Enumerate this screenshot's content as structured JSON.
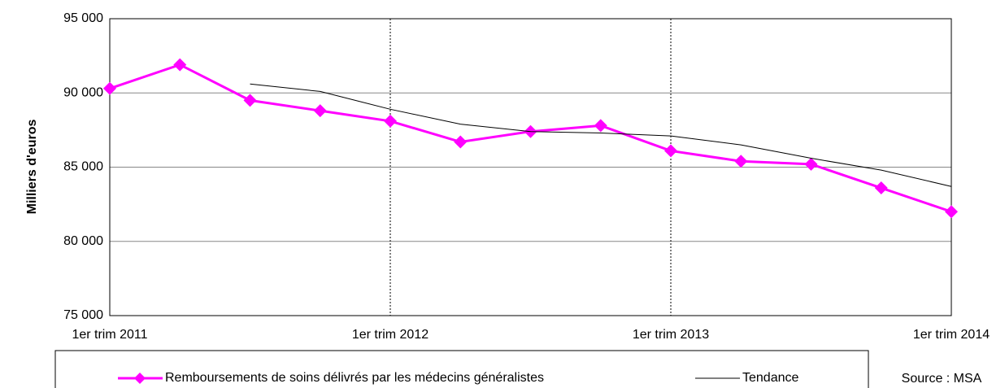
{
  "chart_data": {
    "type": "line",
    "y_label": "Milliers d'euros",
    "source": "Source : MSA",
    "categories": [
      "1er trim 2011",
      null,
      null,
      null,
      "1er trim 2012",
      null,
      null,
      null,
      "1er trim 2013",
      null,
      null,
      null,
      "1er trim 2014"
    ],
    "series": [
      {
        "name": "Remboursements de soins délivrés par les médecins généralistes",
        "color": "#ff00ff",
        "marker": "diamond",
        "values": [
          90300,
          91900,
          89500,
          88800,
          88100,
          86700,
          87400,
          87800,
          86100,
          85400,
          85200,
          83600,
          82000
        ]
      },
      {
        "name": "Tendance",
        "color": "#000000",
        "values": [
          null,
          null,
          90600,
          90100,
          88900,
          87900,
          87400,
          87300,
          87100,
          86500,
          85600,
          84800,
          83700
        ]
      }
    ],
    "ylim": [
      75000,
      95000
    ],
    "yticks": [
      {
        "value": 75000,
        "label": "75 000"
      },
      {
        "value": 80000,
        "label": "80 000"
      },
      {
        "value": 85000,
        "label": "85 000"
      },
      {
        "value": 90000,
        "label": "90 000"
      },
      {
        "value": 95000,
        "label": "95 000"
      }
    ],
    "grid": true
  }
}
